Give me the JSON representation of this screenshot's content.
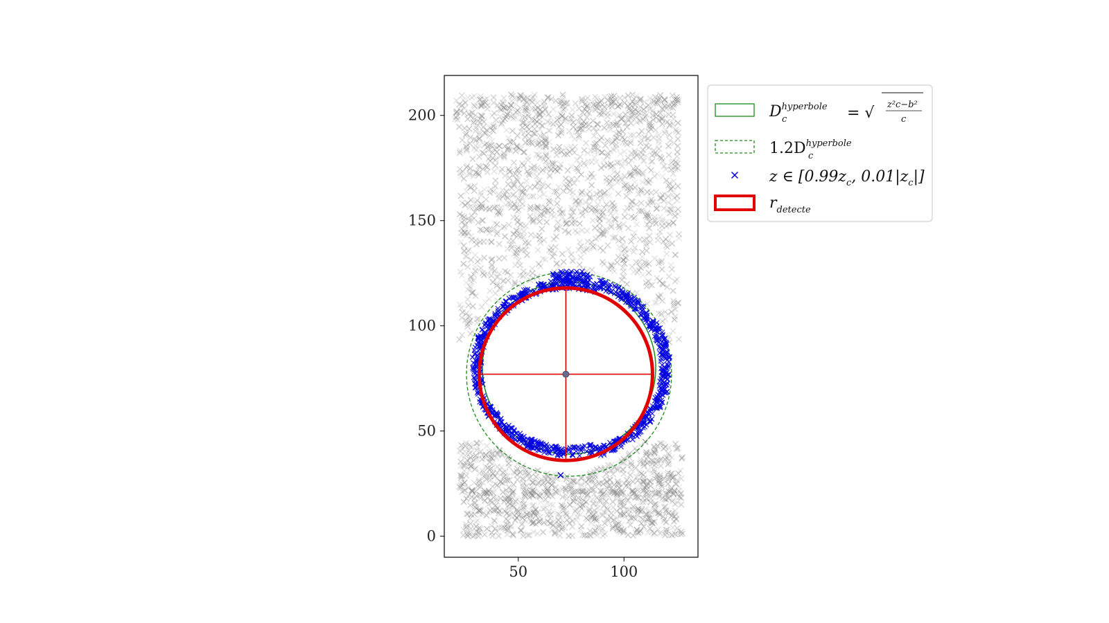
{
  "chart_data": {
    "type": "scatter",
    "title": "",
    "xlabel": "",
    "ylabel": "",
    "xlim": [
      15,
      135
    ],
    "ylim": [
      -10,
      219
    ],
    "xticks": [
      "50",
      "100"
    ],
    "xtick_values": [
      50,
      100
    ],
    "yticks": [
      "0",
      "50",
      "100",
      "150",
      "200"
    ],
    "ytick_values": [
      0,
      50,
      100,
      150,
      200
    ],
    "grid": false,
    "legend_position": "outside-top-right",
    "background_points": {
      "color": "#808080",
      "marker": "x",
      "bands": [
        {
          "x": [
            20,
            126
          ],
          "y": [
            198,
            210
          ]
        },
        {
          "x": [
            22,
            126
          ],
          "y": [
            150,
            198
          ]
        },
        {
          "x": [
            22,
            126
          ],
          "y": [
            92,
            150
          ]
        },
        {
          "x": [
            22,
            128
          ],
          "y": [
            20,
            45
          ]
        },
        {
          "x": [
            24,
            128
          ],
          "y": [
            0,
            22
          ]
        }
      ]
    },
    "circle": {
      "center": [
        72.5,
        77
      ],
      "radius": 40.5
    },
    "series": [
      {
        "name": "D_c^{hyperbole} = √((z_c² − b²)/c)",
        "type": "circle",
        "color": "#1a8a1a",
        "linestyle": "solid",
        "cx": 74,
        "cy": 80,
        "r": 41
      },
      {
        "name": "1.2 D_c^{hyperbole}",
        "type": "circle",
        "color": "#1a8a1a",
        "linestyle": "dashed",
        "cx": 74,
        "cy": 77,
        "r": 48.5
      },
      {
        "name": "z ∈ [0.99 z_c, 0.01 |z_c|]",
        "type": "scatter",
        "color": "#0000e0",
        "marker": "x"
      },
      {
        "name": "r_detecte",
        "type": "circle",
        "color": "#e00000",
        "linestyle": "solid",
        "cx": 72.5,
        "cy": 77,
        "r": 41
      }
    ],
    "outlier": {
      "x": 70,
      "y": 29
    },
    "legend": {
      "entries": [
        {
          "label_main": "D",
          "label_sub": "c",
          "label_sup": "hyperbole",
          "label_eq": "= √",
          "frac_num": "z²c−b²",
          "frac_den": "c"
        },
        {
          "label_main": "1.2D",
          "label_sub": "c",
          "label_sup": "hyperbole"
        },
        {
          "label_main": "z ∈ [0.99z",
          "label_sub": "c",
          "label_tail": ", 0.01|z",
          "label_sub2": "c",
          "label_end": "|]"
        },
        {
          "label_main": "r",
          "label_sub": "detecte"
        }
      ]
    }
  }
}
